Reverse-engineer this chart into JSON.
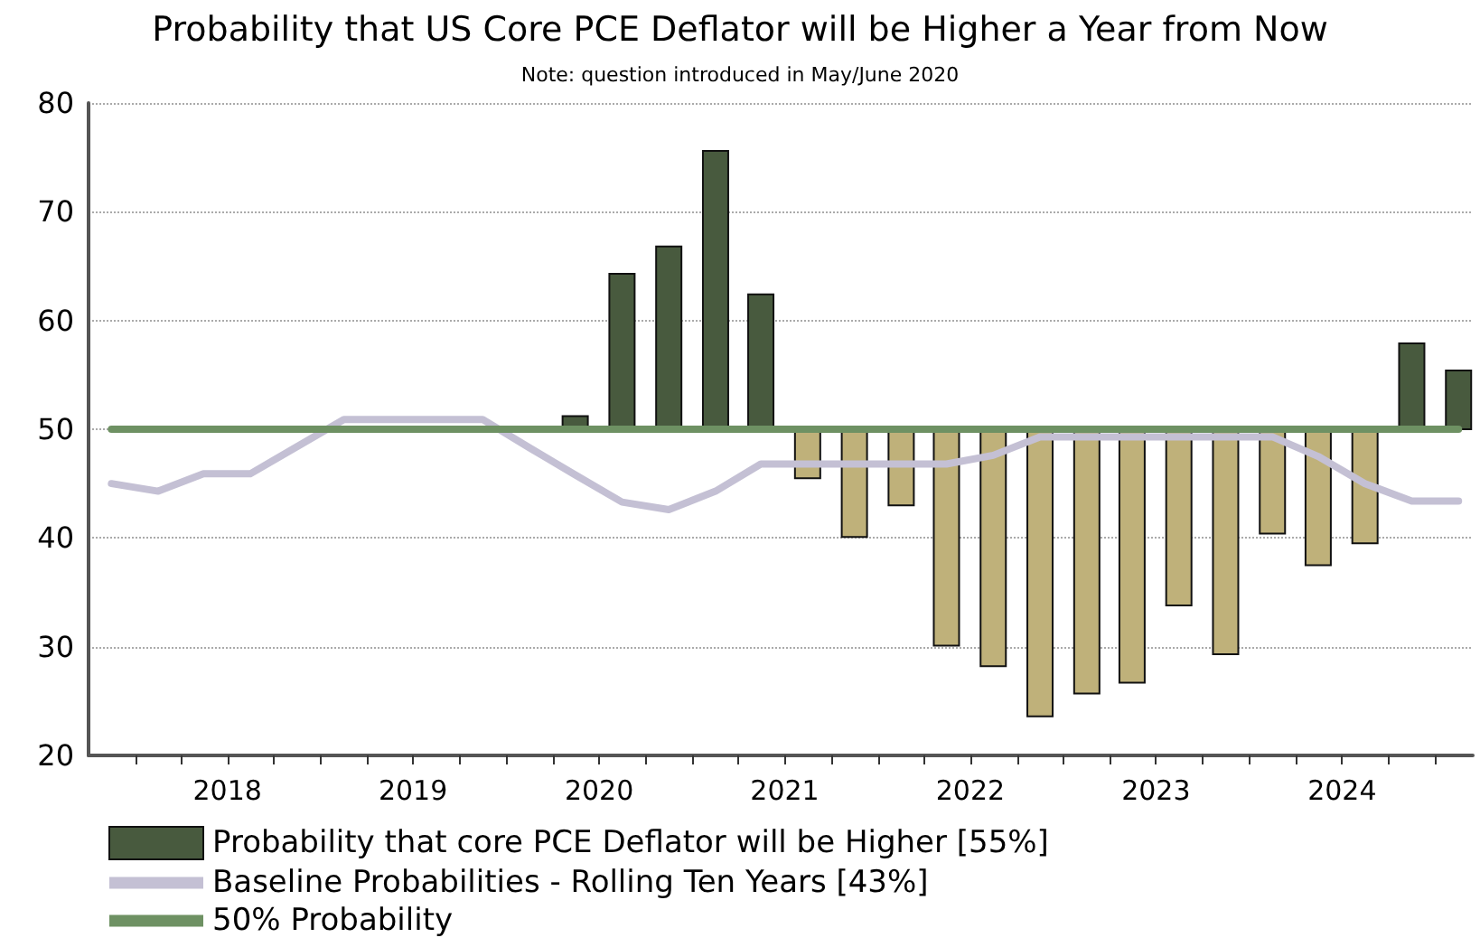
{
  "chart_data": {
    "type": "bar",
    "title": "Probability that US Core PCE Deflator will be Higher a Year from Now",
    "subtitle": "Note: question introduced in May/June 2020",
    "x": [
      "2017-11-15",
      "2018-02-15",
      "2018-05-15",
      "2018-08-15",
      "2018-11-15",
      "2019-02-15",
      "2019-05-15",
      "2019-08-15",
      "2019-11-15",
      "2020-02-15",
      "2020-05-15",
      "2020-08-15",
      "2020-11-15",
      "2021-02-15",
      "2021-05-15",
      "2021-08-15",
      "2021-11-15",
      "2022-02-15",
      "2022-05-15",
      "2022-08-15",
      "2022-11-15",
      "2023-02-15",
      "2023-05-15",
      "2023-08-15",
      "2023-11-15",
      "2024-02-15",
      "2024-05-15",
      "2024-08-15",
      "2024-11-15",
      "2025-02-15"
    ],
    "series": [
      {
        "name": "Probability that core PCE Deflator will be Higher [55%]",
        "color": "#485a3e",
        "x": [
          "2020-05-15",
          "2020-08-15",
          "2020-11-15",
          "2021-02-15",
          "2021-05-15",
          "2021-08-15",
          "2021-11-15",
          "2022-02-15",
          "2022-05-15",
          "2022-08-15",
          "2022-11-15",
          "2023-02-15",
          "2023-05-15",
          "2023-08-15",
          "2023-11-15",
          "2024-02-15",
          "2024-05-15",
          "2024-08-15",
          "2024-11-15",
          "2025-02-15"
        ],
        "base": [
          50,
          50,
          50,
          50,
          50,
          50,
          50,
          50,
          50,
          50,
          50,
          50,
          50,
          50,
          50,
          50,
          50,
          50,
          50,
          50
        ],
        "values": [
          1.2,
          14.3,
          16.8,
          25.6,
          12.4,
          -4.5,
          -9.9,
          -7.0,
          -19.9,
          -21.8,
          -26.4,
          -24.3,
          -23.3,
          -16.2,
          -20.7,
          -9.6,
          -12.5,
          -10.5,
          7.9,
          5.4
        ],
        "colors": [
          "#485a3e",
          "#485a3e",
          "#485a3e",
          "#485a3e",
          "#485a3e",
          "#bfb17a",
          "#bfb17a",
          "#bfb17a",
          "#bfb17a",
          "#bfb17a",
          "#bfb17a",
          "#bfb17a",
          "#bfb17a",
          "#bfb17a",
          "#bfb17a",
          "#bfb17a",
          "#bfb17a",
          "#bfb17a",
          "#485a3e",
          "#485a3e"
        ]
      },
      {
        "type": "line",
        "name": "Baseline Probabilities - Rolling Ten Years [43%]",
        "color": "#c4c0d4",
        "values": [
          45.0,
          44.3,
          45.9,
          45.9,
          48.4,
          50.9,
          50.9,
          50.9,
          50.9,
          48.3,
          45.8,
          43.3,
          42.6,
          44.3,
          46.8,
          46.8,
          46.8,
          46.8,
          46.8,
          47.6,
          49.3,
          49.3,
          49.3,
          49.3,
          49.3,
          49.3,
          47.5,
          45.0,
          43.4,
          43.4
        ]
      },
      {
        "type": "line",
        "name": "50% Probability",
        "color": "#6e9163",
        "values": [
          50,
          50,
          50,
          50,
          50,
          50,
          50,
          50,
          50,
          50,
          50,
          50,
          50,
          50,
          50,
          50,
          50,
          50,
          50,
          50,
          50,
          50,
          50,
          50,
          50,
          50,
          50,
          50,
          50,
          50
        ]
      }
    ],
    "xlim": [
      "2017-10-01",
      "2025-03-15"
    ],
    "xticks": [
      {
        "value": "2018-01-01",
        "label": null
      },
      {
        "value": "2018-04-01",
        "label": null
      },
      {
        "value": "2018-07-01",
        "label": "2018"
      },
      {
        "value": "2018-10-01",
        "label": null
      },
      {
        "value": "2019-01-01",
        "label": null
      },
      {
        "value": "2019-04-01",
        "label": null
      },
      {
        "value": "2019-07-01",
        "label": "2019"
      },
      {
        "value": "2019-10-01",
        "label": null
      },
      {
        "value": "2020-01-01",
        "label": null
      },
      {
        "value": "2020-04-01",
        "label": null
      },
      {
        "value": "2020-07-01",
        "label": "2020"
      },
      {
        "value": "2020-10-01",
        "label": null
      },
      {
        "value": "2021-01-01",
        "label": null
      },
      {
        "value": "2021-04-01",
        "label": null
      },
      {
        "value": "2021-07-01",
        "label": "2021"
      },
      {
        "value": "2021-10-01",
        "label": null
      },
      {
        "value": "2022-01-01",
        "label": null
      },
      {
        "value": "2022-04-01",
        "label": null
      },
      {
        "value": "2022-07-01",
        "label": "2022"
      },
      {
        "value": "2022-10-01",
        "label": null
      },
      {
        "value": "2023-01-01",
        "label": null
      },
      {
        "value": "2023-04-01",
        "label": null
      },
      {
        "value": "2023-07-01",
        "label": "2023"
      },
      {
        "value": "2023-10-01",
        "label": null
      },
      {
        "value": "2024-01-01",
        "label": null
      },
      {
        "value": "2024-04-01",
        "label": null
      },
      {
        "value": "2024-07-01",
        "label": "2024"
      },
      {
        "value": "2024-10-01",
        "label": null
      },
      {
        "value": "2025-01-01",
        "label": null
      }
    ],
    "ylim": [
      20,
      80
    ],
    "yticks": [
      20,
      30,
      40,
      50,
      60,
      70,
      80
    ],
    "grid": "y",
    "legend": "bottom",
    "marker": "none",
    "line_style": "solid"
  }
}
